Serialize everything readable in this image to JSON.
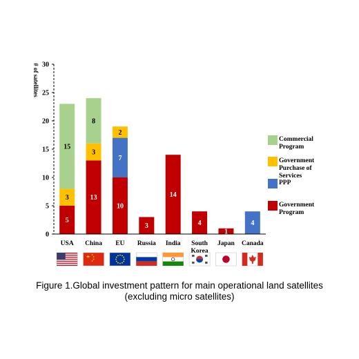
{
  "chart_data": {
    "type": "bar",
    "stacked": true,
    "ylabel": "# of satellites",
    "ylim": [
      0,
      30
    ],
    "yticks": [
      0,
      5,
      10,
      15,
      20,
      25,
      30
    ],
    "categories": [
      "USA",
      "China",
      "EU",
      "Russia",
      "India",
      "South Korea",
      "Japan",
      "Canada"
    ],
    "category_lines": [
      [
        "USA"
      ],
      [
        "China"
      ],
      [
        "EU"
      ],
      [
        "Russia"
      ],
      [
        "India"
      ],
      [
        "South",
        "Korea"
      ],
      [
        "Japan"
      ],
      [
        "Canada"
      ]
    ],
    "series": [
      {
        "name": "Government Program",
        "legend_lines": [
          "Government",
          "Program"
        ],
        "color": "#C00000",
        "values": [
          5,
          13,
          10,
          3,
          14,
          4,
          1,
          0
        ]
      },
      {
        "name": "PPP",
        "legend_lines": [
          "PPP"
        ],
        "color": "#4472C4",
        "values": [
          0,
          0,
          7,
          0,
          0,
          0,
          0,
          4
        ]
      },
      {
        "name": "Government Purchase of Services",
        "legend_lines": [
          "Government",
          "Purchase of",
          "Services"
        ],
        "color": "#FFC000",
        "values": [
          3,
          3,
          2,
          0,
          0,
          0,
          0,
          0
        ]
      },
      {
        "name": "Commercial Program",
        "legend_lines": [
          "Commercial",
          "Program"
        ],
        "color": "#A9D18E",
        "values": [
          15,
          8,
          0,
          0,
          0,
          0,
          0,
          0
        ]
      }
    ],
    "legend_position": "right",
    "grid": false
  },
  "flags": [
    "us-flag",
    "china-flag",
    "eu-flag",
    "russia-flag",
    "india-flag",
    "south-korea-flag",
    "japan-flag",
    "canada-flag"
  ],
  "caption": {
    "line1": "Figure 1.Global investment pattern for main operational land satellites",
    "line2": "(excluding micro satellites)"
  }
}
